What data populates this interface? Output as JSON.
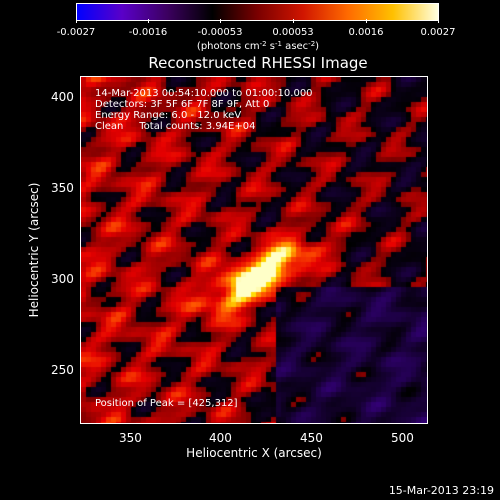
{
  "colorbar": {
    "tick_labels": [
      "-0.0027",
      "-0.0016",
      "-0.00053",
      "0.00053",
      "0.0016",
      "0.0027"
    ],
    "units_prefix": "(photons cm",
    "units_exp1": "-2",
    "units_mid": " s",
    "units_exp2": "-1",
    "units_mid2": " asec",
    "units_exp3": "-2",
    "units_suffix": ")",
    "colors": [
      "#0000ff",
      "#5a00c8",
      "#3c0060",
      "#000000",
      "#7a0000",
      "#d01500",
      "#ff6a00",
      "#ffc000",
      "#ffffe0"
    ]
  },
  "title": "Reconstructed RHESSI Image",
  "info": {
    "line1": "14-Mar-2013 00:54:10.000 to 01:00:10.000",
    "line2": "Detectors: 3F 5F 6F 7F 8F 9F, Att 0",
    "line3": "Energy Range: 6.0 - 12.0 keV",
    "line4": "Clean     Total counts: 3.94E+04",
    "peak": "Position of Peak = [425,312]"
  },
  "axes": {
    "xlabel": "Heliocentric X (arcsec)",
    "ylabel": "Heliocentric Y (arcsec)",
    "xticks": [
      "350",
      "400",
      "450",
      "500"
    ],
    "yticks": [
      "400",
      "350",
      "300",
      "250"
    ],
    "xrange": [
      320,
      512
    ],
    "yrange": [
      222,
      414
    ]
  },
  "footer": {
    "timestamp": "15-Mar-2013 23:19"
  }
}
